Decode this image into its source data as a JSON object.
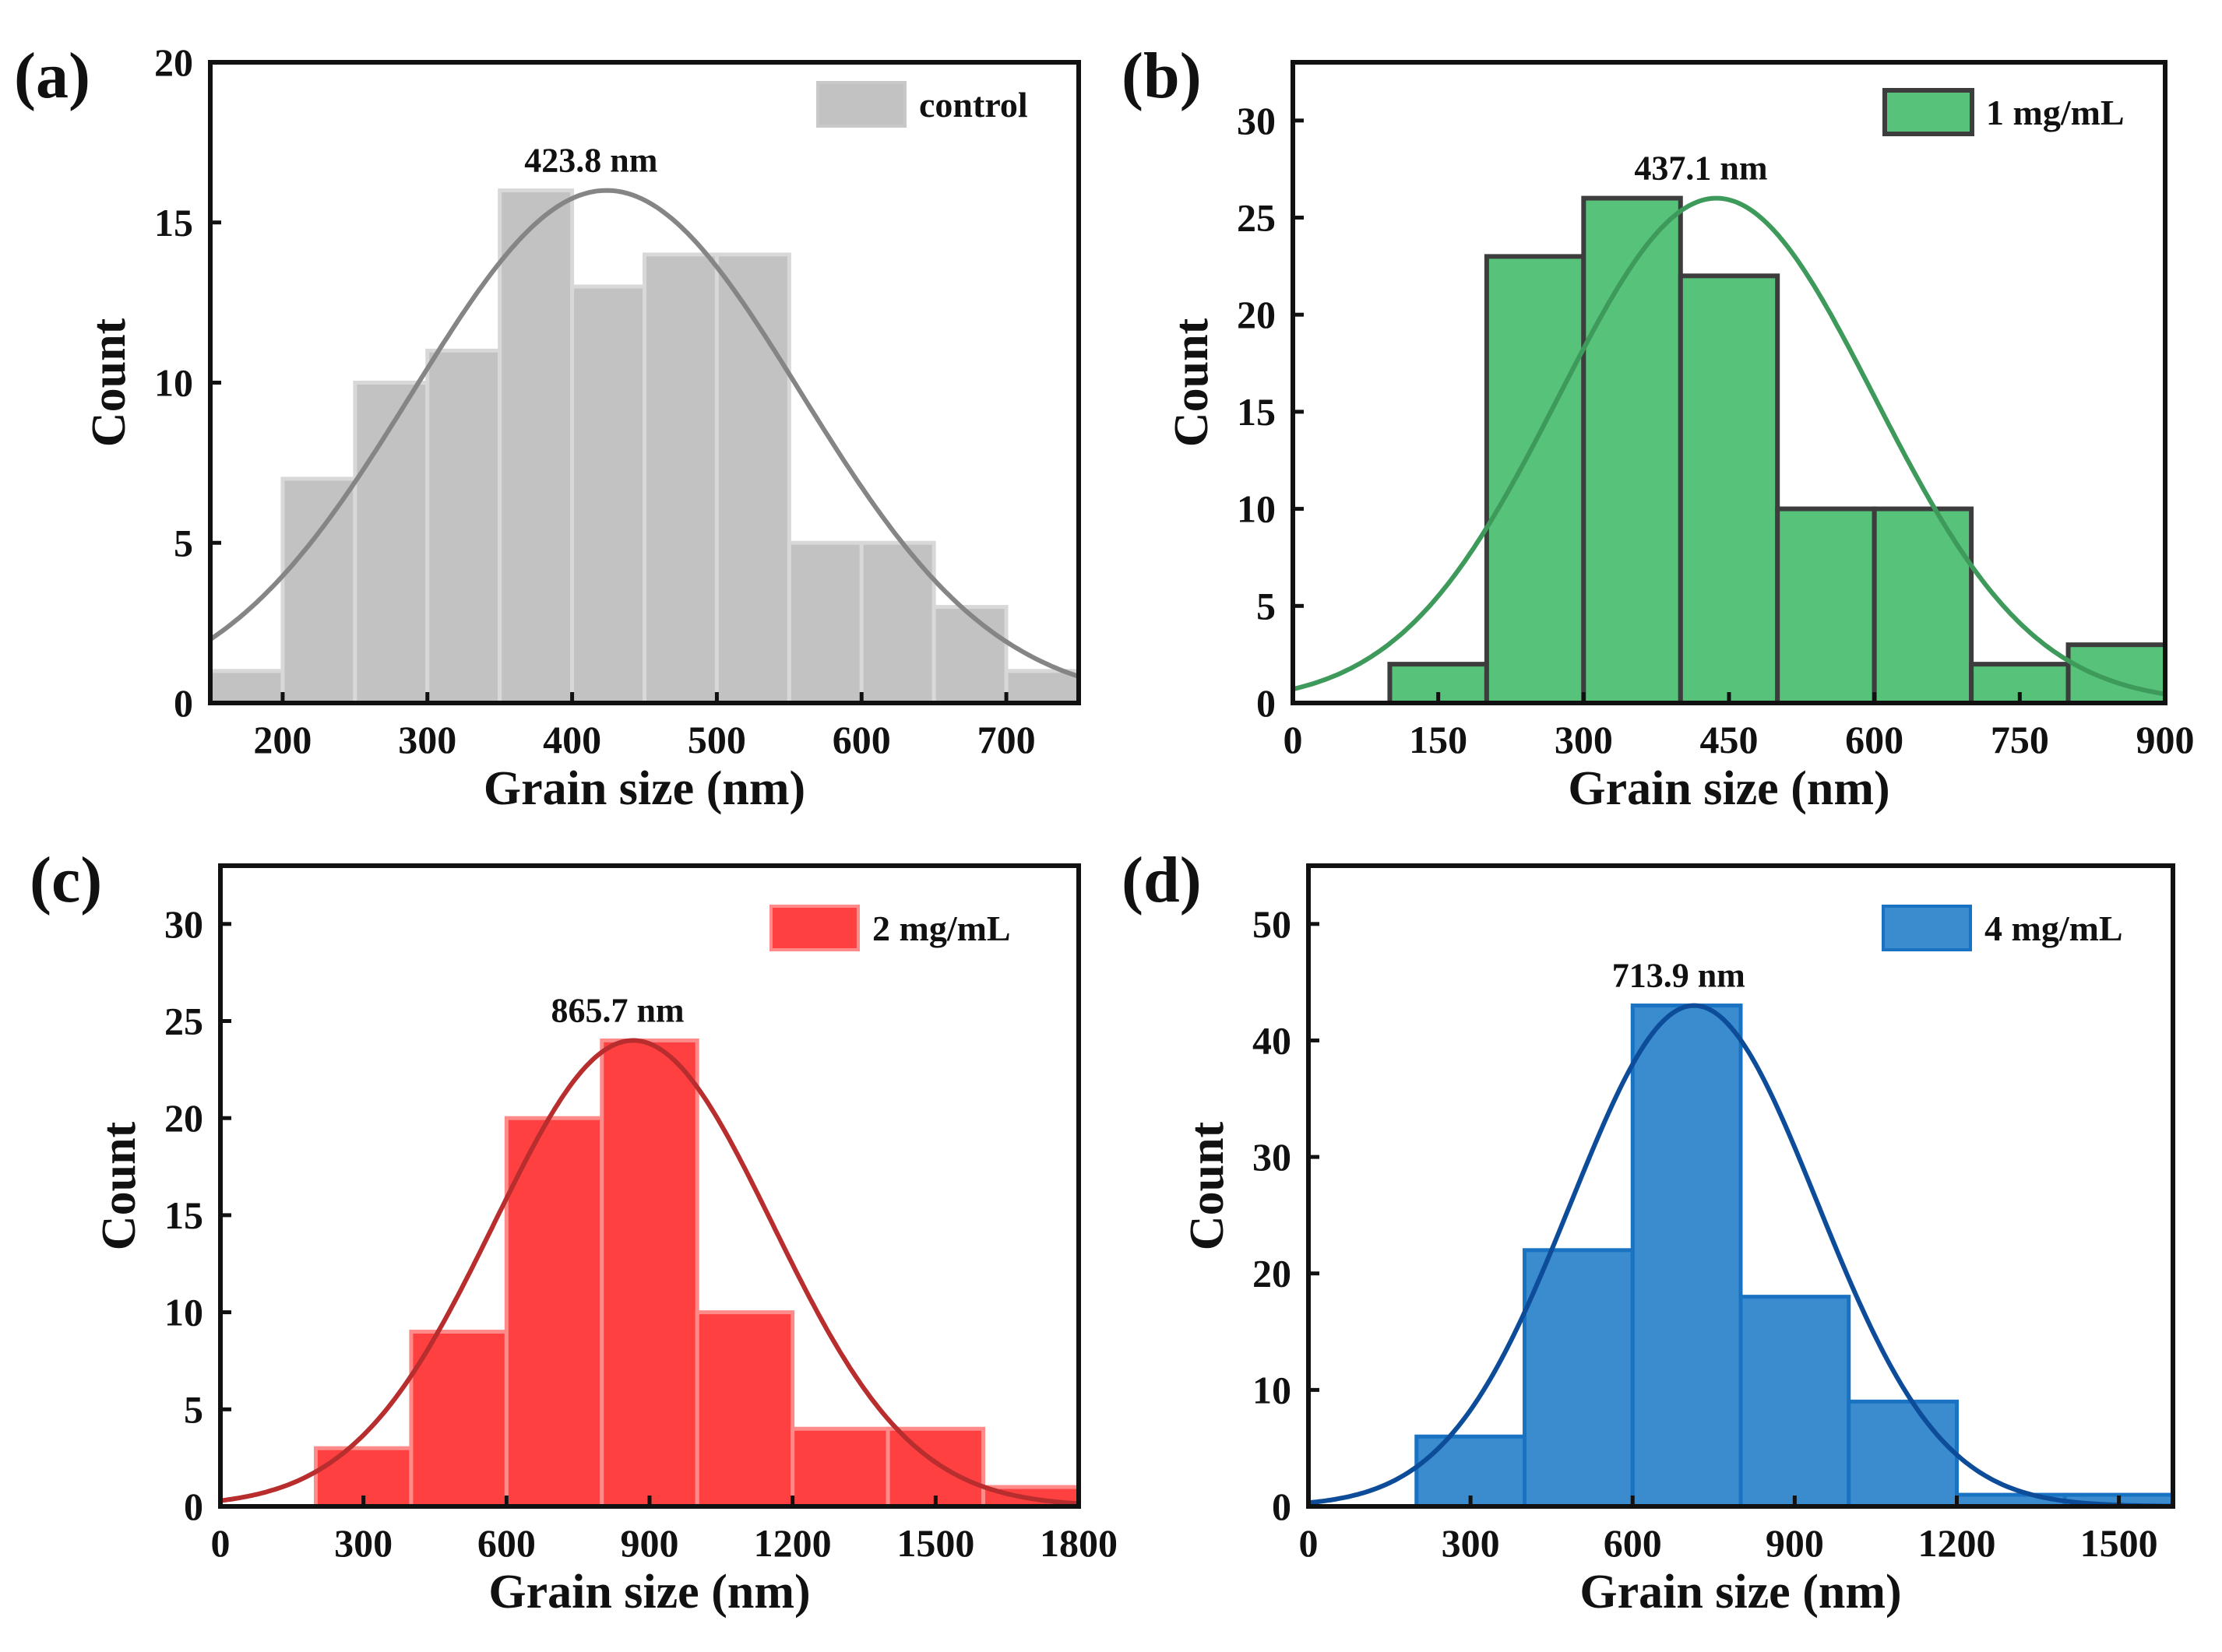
{
  "chart_data": [
    {
      "type": "bar",
      "panel_label": "(a)",
      "xlabel": "Grain size (nm)",
      "ylabel": "Count",
      "xlim": [
        150,
        750
      ],
      "ylim": [
        0,
        20
      ],
      "xticks": [
        200,
        300,
        400,
        500,
        600,
        700
      ],
      "yticks": [
        0,
        5,
        10,
        15,
        20
      ],
      "bin_width": 50,
      "bins": [
        150,
        200,
        250,
        300,
        350,
        400,
        450,
        500,
        550,
        600,
        650,
        700
      ],
      "values": [
        1,
        7,
        10,
        11,
        16,
        13,
        14,
        14,
        5,
        5,
        3,
        1
      ],
      "fit": {
        "mean": 423.8,
        "sigma": 134,
        "peak": 16
      },
      "peak_label": "423.8 nm",
      "legend": "control",
      "legend_position": "top-right",
      "colors": {
        "fill": "#c2c2c2",
        "edge": "#d8d8d8",
        "curve": "#858585",
        "legend_edge": "#c8c8c8"
      }
    },
    {
      "type": "bar",
      "panel_label": "(b)",
      "xlabel": "Grain size (nm)",
      "ylabel": "Count",
      "xlim": [
        0,
        900
      ],
      "ylim": [
        0,
        33
      ],
      "xticks": [
        0,
        150,
        300,
        450,
        600,
        750,
        900
      ],
      "yticks": [
        0,
        5,
        10,
        15,
        20,
        25,
        30
      ],
      "bin_width": 100,
      "bins": [
        100,
        200,
        300,
        400,
        500,
        600,
        700,
        800
      ],
      "values": [
        2,
        23,
        26,
        22,
        10,
        10,
        2,
        3
      ],
      "fit": {
        "mean": 437.1,
        "sigma": 163,
        "peak": 26
      },
      "peak_label": "437.1 nm",
      "legend": "1 mg/mL",
      "legend_position": "top-right",
      "colors": {
        "fill": "#56c27a",
        "edge": "#3d3d3d",
        "curve": "#3e9a5a",
        "legend_edge": "#3d3d3d"
      }
    },
    {
      "type": "bar",
      "panel_label": "(c)",
      "xlabel": "Grain size (nm)",
      "ylabel": "Count",
      "xlim": [
        0,
        1800
      ],
      "ylim": [
        0,
        33
      ],
      "xticks": [
        0,
        300,
        600,
        900,
        1200,
        1500,
        1800
      ],
      "yticks": [
        0,
        5,
        10,
        15,
        20,
        25,
        30
      ],
      "bin_width": 200,
      "bins": [
        200,
        400,
        600,
        800,
        1000,
        1200,
        1400,
        1600
      ],
      "values": [
        3,
        9,
        20,
        24,
        10,
        4,
        4,
        1
      ],
      "fit": {
        "mean": 865.7,
        "sigma": 292,
        "peak": 24
      },
      "peak_label": "865.7 nm",
      "legend": "2 mg/mL",
      "legend_position": "top-right",
      "colors": {
        "fill": "#ff4040",
        "edge": "#ff8a8a",
        "curve": "#b82e2e",
        "legend_edge": "#ff8a8a"
      }
    },
    {
      "type": "bar",
      "panel_label": "(d)",
      "xlabel": "Grain size (nm)",
      "ylabel": "Count",
      "xlim": [
        0,
        1600
      ],
      "ylim": [
        0,
        55
      ],
      "xticks": [
        0,
        300,
        600,
        900,
        1200,
        1500
      ],
      "yticks": [
        0,
        10,
        20,
        30,
        40,
        50
      ],
      "bin_width": 200,
      "bins": [
        200,
        400,
        600,
        800,
        1000,
        1200,
        1400
      ],
      "values": [
        6,
        22,
        43,
        18,
        9,
        1,
        1
      ],
      "fit": {
        "mean": 713.9,
        "sigma": 228,
        "peak": 43
      },
      "peak_label": "713.9 nm",
      "legend": "4 mg/mL",
      "legend_position": "top-right",
      "colors": {
        "fill": "#3a8ccf",
        "edge": "#1a72c2",
        "curve": "#0d4c99",
        "legend_edge": "#1a72c2"
      }
    }
  ]
}
